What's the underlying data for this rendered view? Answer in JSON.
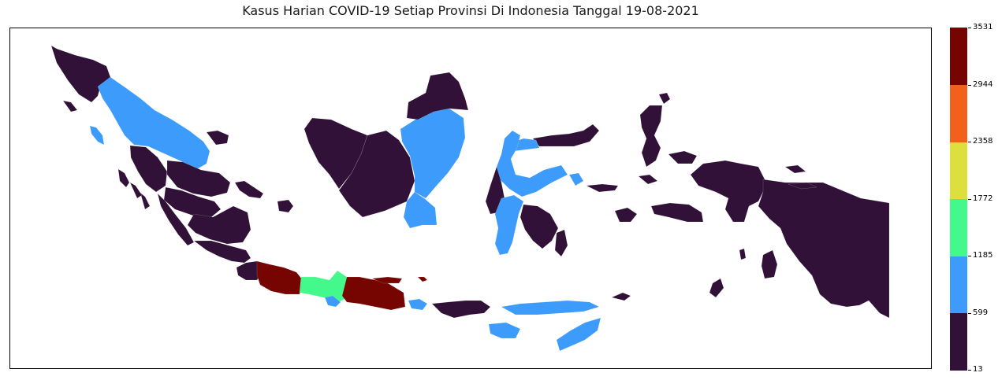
{
  "title": "Kasus Harian COVID-19 Setiap Provinsi Di Indonesia Tanggal 19-08-2021",
  "colorbar": {
    "ticks": [
      "3531",
      "2944",
      "2358",
      "1772",
      "1185",
      "599",
      "13"
    ],
    "bins": [
      {
        "from": 13,
        "to": 599,
        "color": "#321138"
      },
      {
        "from": 599,
        "to": 1185,
        "color": "#3d9bfb"
      },
      {
        "from": 1185,
        "to": 1772,
        "color": "#43f98b"
      },
      {
        "from": 1772,
        "to": 2358,
        "color": "#dcdf3d"
      },
      {
        "from": 2358,
        "to": 2944,
        "color": "#f1611b"
      },
      {
        "from": 2944,
        "to": 3531,
        "color": "#760501"
      }
    ]
  },
  "chart_data": {
    "type": "choropleth",
    "title": "Kasus Harian COVID-19 Setiap Provinsi Di Indonesia Tanggal 19-08-2021",
    "value_range": [
      13,
      3531
    ],
    "colormap_bins": 6,
    "region_bins": {
      "Aceh": "13-599",
      "Sumatera Utara": "599-1185",
      "Sumatera Barat": "13-599",
      "Riau": "13-599",
      "Jambi": "13-599",
      "Sumatera Selatan": "13-599",
      "Bengkulu": "13-599",
      "Lampung": "13-599",
      "Kepulauan Bangka Belitung": "13-599",
      "Kepulauan Riau": "13-599",
      "Banten": "13-599",
      "Jawa Barat": "2944-3531",
      "Jawa Tengah": "1185-1772",
      "DI Yogyakarta": "599-1185",
      "Jawa Timur": "2944-3531",
      "Bali": "599-1185",
      "Nusa Tenggara Barat": "13-599",
      "Nusa Tenggara Timur": "599-1185",
      "Kalimantan Barat": "13-599",
      "Kalimantan Tengah": "13-599",
      "Kalimantan Selatan": "13-599",
      "Kalimantan Timur": "599-1185",
      "Kalimantan Utara": "13-599",
      "Sulawesi Utara": "13-599",
      "Gorontalo": "599-1185",
      "Sulawesi Tengah": "599-1185",
      "Sulawesi Barat": "13-599",
      "Sulawesi Selatan": "599-1185",
      "Sulawesi Tenggara": "13-599",
      "Maluku": "13-599",
      "Maluku Utara": "13-599",
      "Papua Barat": "13-599",
      "Papua": "13-599"
    }
  }
}
